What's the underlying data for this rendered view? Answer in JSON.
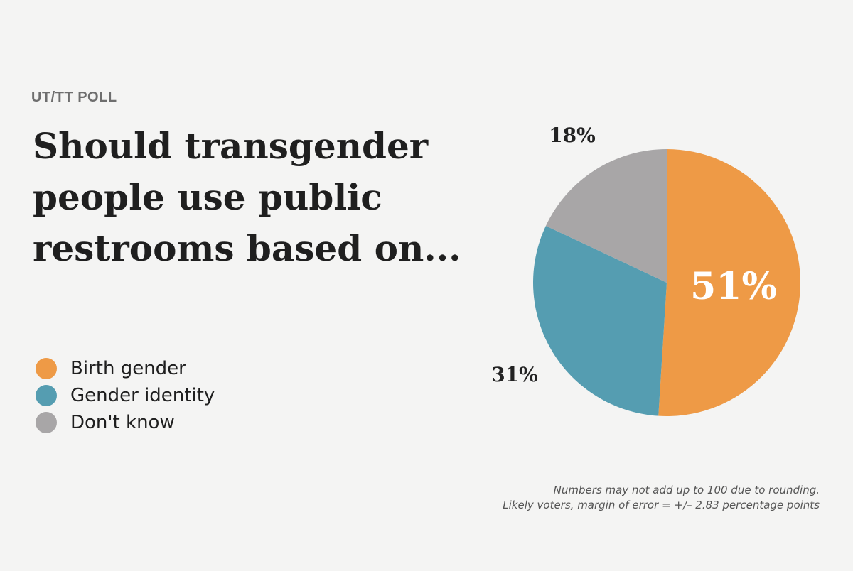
{
  "kicker": "UT/TT POLL",
  "title": "Should transgender people use public restrooms based on...",
  "notes": [
    "Numbers may not add up to 100 due to rounding.",
    "Likely voters, margin of error = +/– 2.83 percentage points"
  ],
  "chart_data": {
    "type": "pie",
    "title": "Should transgender people use public restrooms based on...",
    "categories": [
      "Birth gender",
      "Gender identity",
      "Don't know"
    ],
    "values": [
      51,
      31,
      18
    ],
    "labels": [
      "51%",
      "31%",
      "18%"
    ],
    "colors": [
      "#ee9a46",
      "#559db1",
      "#a8a6a7"
    ],
    "legend": "left"
  }
}
